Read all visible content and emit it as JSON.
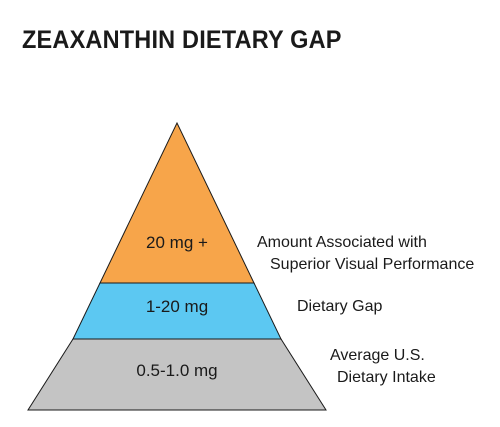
{
  "title": "ZEAXANTHIN DIETARY GAP",
  "tiers": [
    {
      "value": "20 mg +",
      "desc_line1": "Amount Associated with",
      "desc_line2": "Superior Visual Performance",
      "color": "#f7a54a"
    },
    {
      "value": "1-20 mg",
      "desc_line1": "Dietary Gap",
      "desc_line2": "",
      "color": "#5cc8f2"
    },
    {
      "value": "0.5-1.0 mg",
      "desc_line1": "Average U.S.",
      "desc_line2": "Dietary Intake",
      "color": "#c4c4c4"
    }
  ]
}
